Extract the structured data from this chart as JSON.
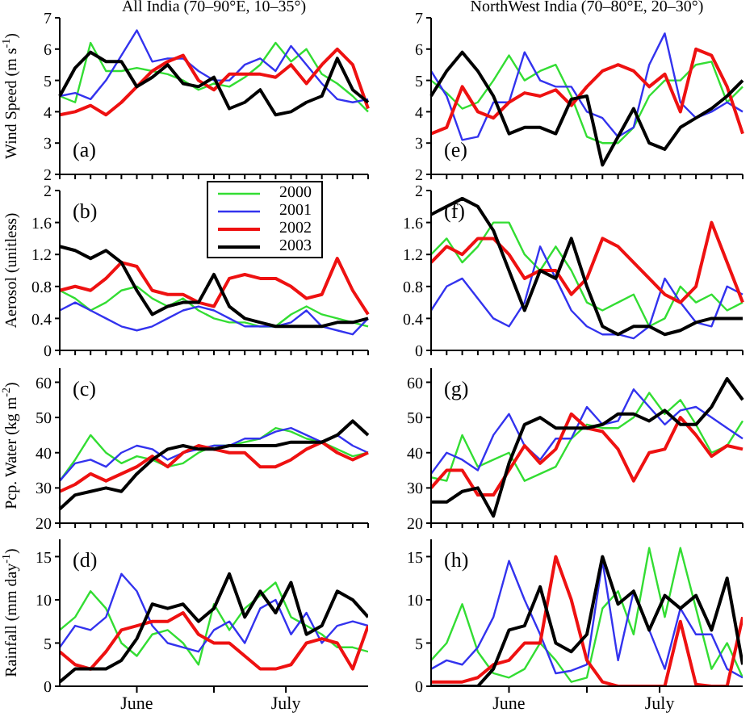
{
  "chart_data": [
    {
      "type": "line",
      "title": "All India (70–90°E, 10–35°)",
      "ylabel": "Wind Speed (m s$^{-1}$)",
      "annotations": [
        "(a)"
      ],
      "categories": [
        null,
        null,
        null,
        null,
        null,
        null,
        null,
        null,
        null,
        null,
        null,
        null,
        null,
        null,
        null,
        null,
        null,
        null,
        null,
        null,
        null
      ],
      "ylim": [
        2,
        7
      ],
      "yticks": [
        2,
        3,
        4,
        5,
        6,
        7
      ],
      "tick_labels": "y",
      "series": [
        {
          "color": "#33dd33",
          "values": [
            4.5,
            4.3,
            6.2,
            5.3,
            5.3,
            5.4,
            5.3,
            5.2,
            5.0,
            4.7,
            4.9,
            4.8,
            5.1,
            5.5,
            6.2,
            5.6,
            6.0,
            5.2,
            4.9,
            4.5,
            4.0
          ]
        },
        {
          "color": "#3333ee",
          "values": [
            4.5,
            4.6,
            4.4,
            5.0,
            5.8,
            6.6,
            5.6,
            5.7,
            5.7,
            5.3,
            5.0,
            5.0,
            5.5,
            5.7,
            5.3,
            6.1,
            5.5,
            4.9,
            4.4,
            4.3,
            4.4
          ]
        },
        {
          "color": "#ee1111",
          "values": [
            3.9,
            4.0,
            4.2,
            3.9,
            4.3,
            4.8,
            5.3,
            5.6,
            5.8,
            5.0,
            4.7,
            5.2,
            5.2,
            5.2,
            5.1,
            5.5,
            4.9,
            5.5,
            6.0,
            5.5,
            4.1
          ]
        },
        {
          "color": "#000000",
          "values": [
            4.5,
            5.4,
            5.9,
            5.6,
            5.6,
            4.8,
            5.1,
            5.5,
            4.9,
            4.8,
            5.1,
            4.1,
            4.3,
            4.7,
            3.9,
            4.0,
            4.3,
            4.5,
            5.7,
            4.7,
            4.3
          ]
        }
      ]
    },
    {
      "type": "line",
      "ylabel": "Aerosol (unitless)",
      "annotations": [
        "(b)"
      ],
      "legend": "top right",
      "categories": [
        null,
        null,
        null,
        null,
        null,
        null,
        null,
        null,
        null,
        null,
        null,
        null,
        null,
        null,
        null,
        null,
        null,
        null,
        null,
        null,
        null
      ],
      "ylim": [
        0,
        2
      ],
      "yticks": [
        0,
        0.4,
        0.8,
        1.2,
        1.6,
        2
      ],
      "tick_labels": "y",
      "series": [
        {
          "name": "2000",
          "color": "#33dd33",
          "values": [
            0.75,
            0.65,
            0.5,
            0.6,
            0.75,
            0.8,
            0.65,
            0.55,
            0.65,
            0.5,
            0.4,
            0.35,
            0.35,
            0.3,
            0.3,
            0.45,
            0.55,
            0.45,
            0.4,
            0.35,
            0.3
          ]
        },
        {
          "name": "2001",
          "color": "#3333ee",
          "values": [
            0.5,
            0.6,
            0.5,
            0.4,
            0.3,
            0.25,
            0.3,
            0.4,
            0.5,
            0.55,
            0.5,
            0.4,
            0.3,
            0.3,
            0.3,
            0.35,
            0.5,
            0.3,
            0.25,
            0.2,
            0.4
          ]
        },
        {
          "name": "2002",
          "color": "#ee1111",
          "values": [
            0.75,
            0.8,
            0.75,
            0.9,
            1.1,
            1.05,
            0.75,
            0.7,
            0.7,
            0.6,
            0.55,
            0.9,
            0.95,
            0.9,
            0.9,
            0.8,
            0.65,
            0.7,
            1.15,
            0.75,
            0.45
          ]
        },
        {
          "name": "2003",
          "color": "#000000",
          "values": [
            1.3,
            1.25,
            1.15,
            1.25,
            1.1,
            0.75,
            0.45,
            0.55,
            0.6,
            0.6,
            0.95,
            0.55,
            0.4,
            0.35,
            0.3,
            0.3,
            0.3,
            0.3,
            0.35,
            0.35,
            0.4
          ]
        }
      ]
    },
    {
      "type": "line",
      "ylabel": "Pcp. Water (kg m$^{-2}$)",
      "annotations": [
        "(c)"
      ],
      "categories": [
        null,
        null,
        null,
        null,
        null,
        null,
        null,
        null,
        null,
        null,
        null,
        null,
        null,
        null,
        null,
        null,
        null,
        null,
        null,
        null,
        null
      ],
      "ylim": [
        20,
        64
      ],
      "yticks": [
        20,
        30,
        40,
        50,
        60
      ],
      "tick_labels": "y",
      "series": [
        {
          "color": "#33dd33",
          "values": [
            32,
            38,
            45,
            40,
            37,
            39,
            38,
            36,
            37,
            40,
            42,
            42,
            43,
            44,
            47,
            46,
            44,
            43,
            41,
            39,
            40
          ]
        },
        {
          "color": "#3333ee",
          "values": [
            32,
            37,
            38,
            36,
            40,
            42,
            41,
            38,
            40,
            41,
            42,
            42,
            44,
            44,
            46,
            47,
            45,
            43,
            45,
            42,
            40
          ]
        },
        {
          "color": "#ee1111",
          "values": [
            29,
            31,
            34,
            32,
            34,
            36,
            39,
            36,
            40,
            42,
            41,
            40,
            40,
            36,
            36,
            38,
            41,
            43,
            40,
            38,
            40
          ]
        },
        {
          "color": "#000000",
          "values": [
            24,
            28,
            29,
            30,
            29,
            34,
            38,
            41,
            42,
            41,
            41,
            42,
            42,
            42,
            42,
            43,
            43,
            43,
            45,
            49,
            45
          ]
        }
      ]
    },
    {
      "type": "line",
      "ylabel": "Rainfall (mm day$^{-1}$)",
      "annotations": [
        "(d)"
      ],
      "x": [
        "--06-01",
        "--06-04",
        "--06-07",
        "--06-10",
        "--06-13",
        "--06-16",
        "--06-19",
        "--06-22",
        "--06-25",
        "--06-28",
        "--07-01",
        "--07-04",
        "--07-07",
        "--07-10",
        "--07-13",
        "--07-16",
        "--07-19",
        "--07-22",
        "--07-25",
        "--07-28",
        "--07-31"
      ],
      "xlim": [
        "--06-01",
        "--07-31"
      ],
      "xticks": [
        {
          "value": "--06-16",
          "label": "June"
        },
        {
          "value": "--07-01",
          "label": null
        },
        {
          "value": "--07-15",
          "label": "July"
        }
      ],
      "ylim": [
        0,
        17
      ],
      "yticks": [
        0,
        5,
        10,
        15
      ],
      "series": [
        {
          "color": "#33dd33",
          "values": [
            6.5,
            8,
            11,
            9,
            5,
            3.5,
            6,
            6.5,
            5,
            2.5,
            9.5,
            6.5,
            9,
            10.5,
            12,
            8,
            7,
            6,
            4.5,
            4.5,
            4
          ]
        },
        {
          "color": "#3333ee",
          "values": [
            4.5,
            7,
            6.5,
            8,
            13,
            11,
            7,
            5,
            4.5,
            4,
            6.5,
            7.5,
            5,
            9,
            10,
            6,
            8.5,
            5,
            7,
            7.5,
            7
          ]
        },
        {
          "color": "#ee1111",
          "values": [
            4,
            2.5,
            2,
            4,
            6.5,
            7,
            7.5,
            7.5,
            8.5,
            6,
            5,
            5,
            3.5,
            2,
            2,
            2.5,
            5,
            5.5,
            5,
            2,
            7
          ]
        },
        {
          "color": "#000000",
          "values": [
            0.5,
            2,
            2,
            2,
            3,
            5.5,
            9.5,
            9,
            9.5,
            7.5,
            9,
            13,
            8,
            11,
            8.5,
            12,
            6,
            7,
            11,
            10,
            8
          ]
        }
      ]
    },
    {
      "type": "line",
      "title": "NorthWest India (70–80°E, 20–30°)",
      "annotations": [
        "(e)"
      ],
      "categories": [
        null,
        null,
        null,
        null,
        null,
        null,
        null,
        null,
        null,
        null,
        null,
        null,
        null,
        null,
        null,
        null,
        null,
        null,
        null,
        null,
        null
      ],
      "ylim": [
        2,
        7
      ],
      "yticks": [
        2,
        3,
        4,
        5,
        6,
        7
      ],
      "tick_labels": "y",
      "series": [
        {
          "color": "#33dd33",
          "values": [
            5.0,
            4.6,
            4.1,
            4.3,
            5.0,
            5.8,
            5.0,
            5.3,
            5.5,
            4.5,
            3.2,
            3.0,
            3.0,
            3.5,
            4.5,
            5.0,
            5.0,
            5.5,
            5.6,
            4.3,
            4.8
          ]
        },
        {
          "color": "#3333ee",
          "values": [
            5.3,
            4.5,
            3.1,
            3.2,
            4.3,
            4.3,
            5.9,
            5.0,
            4.8,
            4.8,
            4.0,
            3.8,
            3.2,
            3.5,
            5.5,
            6.5,
            4.3,
            3.8,
            4.0,
            4.3,
            4.0
          ]
        },
        {
          "color": "#ee1111",
          "values": [
            3.3,
            3.5,
            4.8,
            4.0,
            3.8,
            4.3,
            4.6,
            4.5,
            4.7,
            4.2,
            4.8,
            5.3,
            5.5,
            5.3,
            4.8,
            5.2,
            4.0,
            6.0,
            5.8,
            4.8,
            3.3
          ]
        },
        {
          "color": "#000000",
          "values": [
            4.5,
            5.3,
            5.9,
            5.3,
            4.5,
            3.3,
            3.5,
            3.5,
            3.3,
            4.4,
            4.5,
            2.3,
            3.2,
            4.1,
            3.0,
            2.8,
            3.5,
            3.8,
            4.1,
            4.5,
            5.0
          ]
        }
      ]
    },
    {
      "type": "line",
      "annotations": [
        "(f)"
      ],
      "categories": [
        null,
        null,
        null,
        null,
        null,
        null,
        null,
        null,
        null,
        null,
        null,
        null,
        null,
        null,
        null,
        null,
        null,
        null,
        null,
        null,
        null
      ],
      "ylim": [
        0,
        2
      ],
      "yticks": [
        0,
        0.4,
        0.8,
        1.2,
        1.6,
        2
      ],
      "tick_labels": "y",
      "series": [
        {
          "color": "#33dd33",
          "values": [
            1.2,
            1.4,
            1.1,
            1.3,
            1.6,
            1.6,
            1.2,
            1.0,
            1.3,
            1.0,
            0.6,
            0.5,
            0.6,
            0.7,
            0.3,
            0.4,
            0.8,
            0.6,
            0.7,
            0.5,
            0.6
          ]
        },
        {
          "color": "#3333ee",
          "values": [
            0.5,
            0.8,
            0.9,
            0.65,
            0.4,
            0.3,
            0.6,
            1.3,
            0.9,
            0.5,
            0.3,
            0.2,
            0.2,
            0.15,
            0.3,
            0.9,
            0.6,
            0.35,
            0.3,
            0.8,
            0.7
          ]
        },
        {
          "color": "#ee1111",
          "values": [
            1.1,
            1.3,
            1.2,
            1.4,
            1.4,
            1.2,
            0.9,
            1.0,
            1.0,
            0.7,
            0.9,
            1.4,
            1.3,
            1.1,
            0.9,
            0.7,
            0.6,
            0.8,
            1.6,
            1.1,
            0.6
          ]
        },
        {
          "color": "#000000",
          "values": [
            1.7,
            1.8,
            1.9,
            1.8,
            1.5,
            1.0,
            0.5,
            1.0,
            0.9,
            1.4,
            0.8,
            0.3,
            0.2,
            0.3,
            0.3,
            0.2,
            0.25,
            0.35,
            0.4,
            0.4,
            0.4
          ]
        }
      ]
    },
    {
      "type": "line",
      "annotations": [
        "(g)"
      ],
      "categories": [
        null,
        null,
        null,
        null,
        null,
        null,
        null,
        null,
        null,
        null,
        null,
        null,
        null,
        null,
        null,
        null,
        null,
        null,
        null,
        null,
        null
      ],
      "ylim": [
        20,
        64
      ],
      "yticks": [
        20,
        30,
        40,
        50,
        60
      ],
      "tick_labels": "y",
      "series": [
        {
          "color": "#33dd33",
          "values": [
            33,
            32,
            45,
            36,
            38,
            40,
            32,
            34,
            36,
            44,
            48,
            47,
            47,
            50,
            57,
            51,
            55,
            48,
            40,
            42,
            49
          ]
        },
        {
          "color": "#3333ee",
          "values": [
            34,
            40,
            38,
            35,
            45,
            51,
            42,
            38,
            44,
            44,
            53,
            48,
            49,
            58,
            53,
            48,
            52,
            53,
            50,
            47,
            44
          ]
        },
        {
          "color": "#ee1111",
          "values": [
            30,
            35,
            35,
            28,
            28,
            35,
            42,
            37,
            41,
            51,
            47,
            46,
            41,
            32,
            40,
            41,
            50,
            45,
            39,
            42,
            41
          ]
        },
        {
          "color": "#000000",
          "values": [
            26,
            26,
            29,
            30,
            22,
            37,
            48,
            50,
            47,
            47,
            47,
            48,
            51,
            51,
            49,
            52,
            48,
            48,
            53,
            61,
            55
          ]
        }
      ]
    },
    {
      "type": "line",
      "annotations": [
        "(h)"
      ],
      "x": [
        "--06-01",
        "--06-04",
        "--06-07",
        "--06-10",
        "--06-13",
        "--06-16",
        "--06-19",
        "--06-22",
        "--06-25",
        "--06-28",
        "--07-01",
        "--07-04",
        "--07-07",
        "--07-10",
        "--07-13",
        "--07-16",
        "--07-19",
        "--07-22",
        "--07-25",
        "--07-28",
        "--07-31"
      ],
      "xlim": [
        "--06-01",
        "--07-31"
      ],
      "xticks": [
        {
          "value": "--06-16",
          "label": "June"
        },
        {
          "value": "--07-01",
          "label": null
        },
        {
          "value": "--07-15",
          "label": "July"
        }
      ],
      "ylim": [
        0,
        17
      ],
      "yticks": [
        0,
        5,
        10,
        15
      ],
      "series": [
        {
          "color": "#33dd33",
          "values": [
            3,
            5,
            9.5,
            4,
            1.5,
            1,
            2,
            5,
            3,
            0.5,
            1,
            9,
            11,
            6,
            16,
            8,
            16,
            9,
            2,
            5,
            1
          ]
        },
        {
          "color": "#3333ee",
          "values": [
            2,
            3,
            2.5,
            4.5,
            8,
            14.5,
            10,
            6,
            1.5,
            1.8,
            2.5,
            14.5,
            3,
            11,
            6.5,
            2,
            9,
            6,
            6,
            2,
            1
          ]
        },
        {
          "color": "#ee1111",
          "values": [
            0.5,
            0.5,
            0.5,
            1,
            2.5,
            3,
            5,
            5,
            15,
            10,
            3,
            0.5,
            0,
            0,
            0,
            0,
            7.5,
            0.2,
            0,
            0,
            8
          ]
        },
        {
          "color": "#000000",
          "values": [
            0,
            0,
            0,
            0,
            2,
            6.5,
            7,
            11.5,
            5,
            4,
            6,
            15,
            9.5,
            11,
            6.5,
            10.5,
            9,
            10.5,
            6.5,
            12.5,
            2.5
          ]
        }
      ]
    }
  ]
}
